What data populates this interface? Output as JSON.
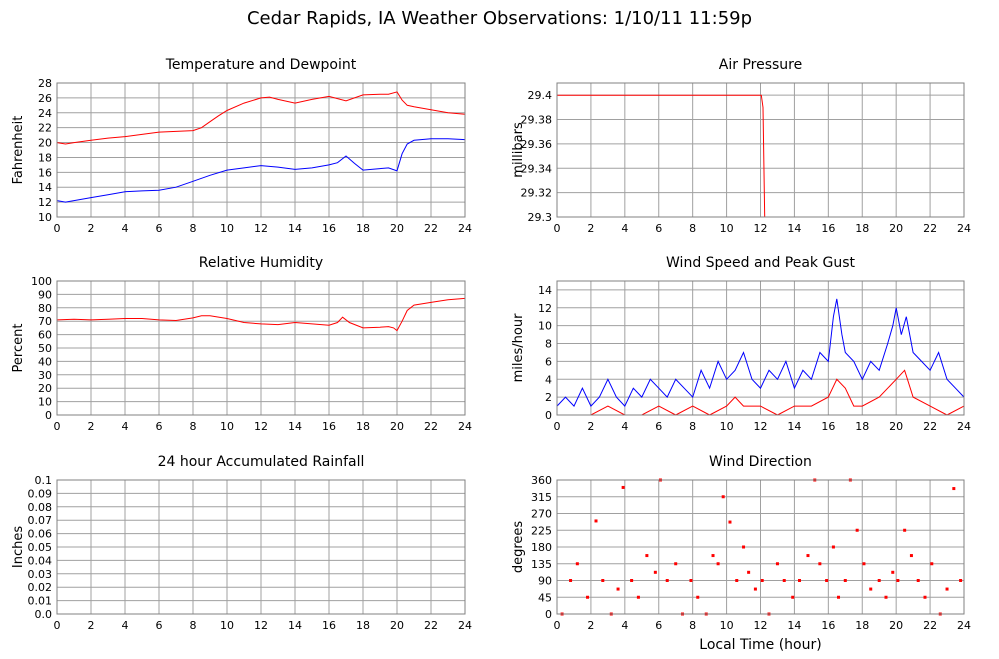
{
  "page": {
    "title": "Cedar Rapids, IA Weather Observations: 1/10/11 11:59p"
  },
  "colors": {
    "red": "#ff0000",
    "blue": "#0000ff",
    "grid": "#a0a0a0",
    "frame": "#808080"
  },
  "chart_data": [
    {
      "id": "temperature",
      "type": "line",
      "title": "Temperature and Dewpoint",
      "xlabel": "",
      "ylabel": "Fahrenheit",
      "xlim": [
        0,
        24
      ],
      "ylim": [
        10,
        28
      ],
      "xticks": [
        0,
        2,
        4,
        6,
        8,
        10,
        12,
        14,
        16,
        18,
        20,
        22,
        24
      ],
      "yticks": [
        10,
        12,
        14,
        16,
        18,
        20,
        22,
        24,
        26,
        28
      ],
      "grid": true,
      "series": [
        {
          "color": "#ff0000",
          "x": [
            0,
            0.5,
            1,
            2,
            3,
            4,
            5,
            6,
            7,
            8,
            8.5,
            9,
            9.5,
            10,
            11,
            12,
            12.5,
            13,
            14,
            15,
            16,
            17,
            18,
            19,
            19.5,
            20,
            20.3,
            20.6,
            21,
            22,
            23,
            24
          ],
          "y": [
            20,
            19.8,
            20,
            20.3,
            20.6,
            20.8,
            21.1,
            21.4,
            21.5,
            21.6,
            22,
            22.8,
            23.6,
            24.3,
            25.3,
            26,
            26.1,
            25.8,
            25.3,
            25.8,
            26.2,
            25.6,
            26.4,
            26.5,
            26.5,
            26.8,
            25.7,
            25,
            24.8,
            24.4,
            24,
            23.8
          ]
        },
        {
          "color": "#0000ff",
          "x": [
            0,
            0.5,
            1,
            2,
            3,
            4,
            5,
            6,
            7,
            8,
            9,
            10,
            11,
            12,
            13,
            14,
            15,
            16,
            16.5,
            17,
            17.5,
            18,
            19,
            19.5,
            20,
            20.3,
            20.6,
            21,
            22,
            23,
            24
          ],
          "y": [
            12.2,
            12,
            12.2,
            12.6,
            13,
            13.4,
            13.5,
            13.6,
            14,
            14.8,
            15.6,
            16.3,
            16.6,
            16.9,
            16.7,
            16.4,
            16.6,
            17,
            17.3,
            18.2,
            17.2,
            16.3,
            16.5,
            16.6,
            16.2,
            18.5,
            19.8,
            20.3,
            20.5,
            20.5,
            20.4
          ]
        }
      ]
    },
    {
      "id": "pressure",
      "type": "line",
      "title": "Air Pressure",
      "xlabel": "",
      "ylabel": "millibars",
      "xlim": [
        0,
        24
      ],
      "ylim": [
        29.3,
        29.41
      ],
      "xticks": [
        0,
        2,
        4,
        6,
        8,
        10,
        12,
        14,
        16,
        18,
        20,
        22,
        24
      ],
      "yticks": [
        29.3,
        29.32,
        29.34,
        29.36,
        29.38,
        29.4
      ],
      "ytick_labels": [
        "29.3",
        "29.32",
        "29.34",
        "29.36",
        "29.38",
        "29.4"
      ],
      "grid": true,
      "series": [
        {
          "color": "#ff0000",
          "x": [
            0,
            12.05,
            12.15,
            12.25,
            24
          ],
          "y": [
            29.4,
            29.4,
            29.39,
            29.3,
            29.3
          ]
        }
      ]
    },
    {
      "id": "humidity",
      "type": "line",
      "title": "Relative Humidity",
      "xlabel": "",
      "ylabel": "Percent",
      "xlim": [
        0,
        24
      ],
      "ylim": [
        0,
        100
      ],
      "xticks": [
        0,
        2,
        4,
        6,
        8,
        10,
        12,
        14,
        16,
        18,
        20,
        22,
        24
      ],
      "yticks": [
        0,
        10,
        20,
        30,
        40,
        50,
        60,
        70,
        80,
        90,
        100
      ],
      "grid": true,
      "series": [
        {
          "color": "#ff0000",
          "x": [
            0,
            1,
            2,
            3,
            4,
            5,
            6,
            7,
            8,
            8.5,
            9,
            10,
            11,
            12,
            13,
            14,
            15,
            16,
            16.5,
            16.8,
            17.2,
            18,
            19,
            19.5,
            19.8,
            20,
            20.3,
            20.6,
            21,
            22,
            23,
            24
          ],
          "y": [
            71,
            71.5,
            71,
            71.5,
            72,
            72,
            71,
            70.5,
            72.5,
            74,
            74,
            72,
            69,
            68,
            67.5,
            69,
            68,
            67,
            69,
            73,
            69,
            65,
            65.5,
            66,
            65,
            63,
            70,
            78,
            82,
            84,
            86,
            87
          ]
        }
      ]
    },
    {
      "id": "wind_speed",
      "type": "line",
      "title": "Wind Speed and Peak Gust",
      "xlabel": "",
      "ylabel": "miles/hour",
      "xlim": [
        0,
        24
      ],
      "ylim": [
        0,
        15
      ],
      "xticks": [
        0,
        2,
        4,
        6,
        8,
        10,
        12,
        14,
        16,
        18,
        20,
        22,
        24
      ],
      "yticks": [
        0,
        2,
        4,
        6,
        8,
        10,
        12,
        14
      ],
      "grid": true,
      "series": [
        {
          "color": "#0000ff",
          "x": [
            0,
            0.5,
            1,
            1.5,
            2,
            2.5,
            3,
            3.5,
            4,
            4.5,
            5,
            5.5,
            6,
            6.5,
            7,
            7.5,
            8,
            8.5,
            9,
            9.5,
            10,
            10.5,
            11,
            11.5,
            12,
            12.5,
            13,
            13.5,
            14,
            14.5,
            15,
            15.5,
            16,
            16.3,
            16.5,
            16.8,
            17,
            17.5,
            18,
            18.5,
            19,
            19.5,
            19.8,
            20,
            20.3,
            20.6,
            21,
            21.5,
            22,
            22.5,
            23,
            23.5,
            24
          ],
          "y": [
            1,
            2,
            1,
            3,
            1,
            2,
            4,
            2,
            1,
            3,
            2,
            4,
            3,
            2,
            4,
            3,
            2,
            5,
            3,
            6,
            4,
            5,
            7,
            4,
            3,
            5,
            4,
            6,
            3,
            5,
            4,
            7,
            6,
            11,
            13,
            9,
            7,
            6,
            4,
            6,
            5,
            8,
            10,
            12,
            9,
            11,
            7,
            6,
            5,
            7,
            4,
            3,
            2
          ]
        },
        {
          "color": "#ff0000",
          "x": [
            0,
            1,
            2,
            3,
            4,
            5,
            6,
            7,
            8,
            9,
            10,
            10.5,
            11,
            12,
            13,
            14,
            15,
            16,
            16.5,
            17,
            17.5,
            18,
            19,
            19.5,
            20,
            20.5,
            21,
            22,
            23,
            24
          ],
          "y": [
            0,
            0,
            0,
            1,
            0,
            0,
            1,
            0,
            1,
            0,
            1,
            2,
            1,
            1,
            0,
            1,
            1,
            2,
            4,
            3,
            1,
            1,
            2,
            3,
            4,
            5,
            2,
            1,
            0,
            1
          ]
        }
      ]
    },
    {
      "id": "rainfall",
      "type": "line",
      "title": "24 hour Accumulated Rainfall",
      "xlabel": "",
      "ylabel": "Inches",
      "xlim": [
        0,
        24
      ],
      "ylim": [
        0,
        0.1
      ],
      "xticks": [
        0,
        2,
        4,
        6,
        8,
        10,
        12,
        14,
        16,
        18,
        20,
        22,
        24
      ],
      "yticks": [
        0,
        0.01,
        0.02,
        0.03,
        0.04,
        0.05,
        0.06,
        0.07,
        0.08,
        0.09,
        0.1
      ],
      "ytick_labels": [
        "0.0",
        "0.01",
        "0.02",
        "0.03",
        "0.04",
        "0.05",
        "0.06",
        "0.07",
        "0.08",
        "0.09",
        "0.1"
      ],
      "grid": true,
      "series": [
        {
          "color": "#ff0000",
          "x": [
            0,
            24
          ],
          "y": [
            0,
            0
          ]
        }
      ]
    },
    {
      "id": "wind_direction",
      "type": "scatter",
      "title": "Wind Direction",
      "xlabel": "Local Time (hour)",
      "ylabel": "degrees",
      "xlim": [
        0,
        24
      ],
      "ylim": [
        0,
        360
      ],
      "xticks": [
        0,
        2,
        4,
        6,
        8,
        10,
        12,
        14,
        16,
        18,
        20,
        22,
        24
      ],
      "yticks": [
        0,
        45,
        90,
        135,
        180,
        225,
        270,
        315,
        360
      ],
      "grid": true,
      "series": [
        {
          "color": "#ff0000",
          "x": [
            0.3,
            0.8,
            1.2,
            1.8,
            2.3,
            2.7,
            3.2,
            3.6,
            3.9,
            4.4,
            4.8,
            5.3,
            5.8,
            6.1,
            6.5,
            7,
            7.4,
            7.9,
            8.3,
            8.8,
            9.2,
            9.5,
            9.8,
            10.2,
            10.6,
            11,
            11.3,
            11.7,
            12.1,
            12.5,
            13,
            13.4,
            13.9,
            14.3,
            14.8,
            15.2,
            15.5,
            15.9,
            16.3,
            16.6,
            17,
            17.3,
            17.7,
            18.1,
            18.5,
            19,
            19.4,
            19.8,
            20.1,
            20.5,
            20.9,
            21.3,
            21.7,
            22.1,
            22.6,
            23,
            23.4,
            23.8
          ],
          "y": [
            0,
            90,
            135,
            45,
            250,
            90,
            0,
            67,
            340,
            90,
            45,
            157,
            112,
            360,
            90,
            135,
            0,
            90,
            45,
            0,
            157,
            135,
            315,
            247,
            90,
            180,
            112,
            67,
            90,
            0,
            135,
            90,
            45,
            90,
            157,
            360,
            135,
            90,
            180,
            45,
            90,
            360,
            225,
            135,
            67,
            90,
            45,
            112,
            90,
            225,
            157,
            90,
            45,
            135,
            0,
            67,
            337,
            90
          ]
        }
      ]
    }
  ]
}
